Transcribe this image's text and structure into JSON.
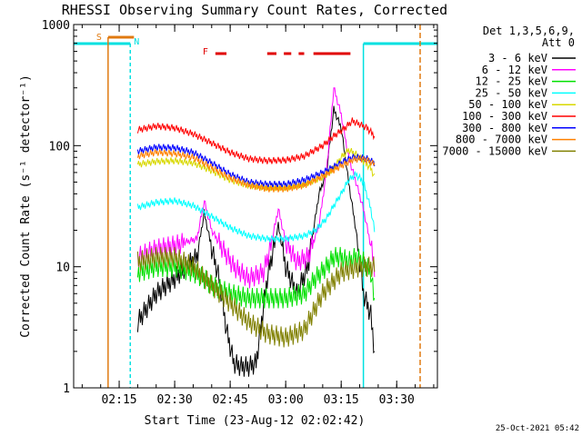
{
  "chart_data": {
    "type": "line",
    "title": "RHESSI Observing Summary Count Rates, Corrected",
    "xlabel": "Start Time (23-Aug-12 02:02:42)",
    "ylabel": "Corrected Count Rate (s⁻¹ detector⁻¹)",
    "yscale": "log",
    "ylim": [
      1,
      1000
    ],
    "y_ticks": [
      "1",
      "10",
      "100",
      "1000"
    ],
    "xlim": [
      "02:02:42",
      "03:41:00"
    ],
    "x_ticks": [
      "02:15",
      "02:30",
      "02:45",
      "03:00",
      "03:15",
      "03:30"
    ],
    "legend_title": [
      "Det 1,3,5,6,9,",
      "Att 0"
    ],
    "legend_position": "right",
    "footer": "25-Oct-2021 05:42",
    "flags": {
      "S": {
        "label": "S",
        "color": "#e07a10",
        "start": "02:12:00",
        "end": "02:19:00"
      },
      "N": {
        "label": "N",
        "color": "#00e0e0",
        "periods": [
          [
            "02:02:42",
            "02:18:00"
          ],
          [
            "03:21:00",
            "03:41:00"
          ]
        ]
      },
      "F": {
        "label": "F",
        "color": "#e00000",
        "segments": [
          [
            "02:41:00",
            "02:44:00"
          ],
          [
            "02:55:00",
            "02:57:30"
          ],
          [
            "02:59:30",
            "03:01:30"
          ],
          [
            "03:03:30",
            "03:05:00"
          ],
          [
            "03:07:30",
            "03:17:30"
          ]
        ]
      }
    },
    "series": [
      {
        "name": "3 - 6 keV",
        "color": "#000000",
        "x": [
          "02:20",
          "02:25",
          "02:30",
          "02:33",
          "02:36",
          "02:38",
          "02:40",
          "02:42",
          "02:44",
          "02:46",
          "02:48",
          "02:50",
          "02:52",
          "02:55",
          "02:58",
          "03:00",
          "03:03",
          "03:06",
          "03:09",
          "03:11",
          "03:13",
          "03:15",
          "03:17",
          "03:19",
          "03:21",
          "03:23",
          "03:24"
        ],
        "y": [
          3.5,
          6,
          8,
          10,
          12,
          28,
          14,
          8,
          3,
          1.6,
          1.5,
          1.5,
          1.6,
          8,
          22,
          10,
          6,
          10,
          40,
          60,
          200,
          140,
          50,
          20,
          6,
          4,
          2
        ]
      },
      {
        "name": "6 - 12 keV",
        "color": "#ff00ff",
        "x": [
          "02:20",
          "02:25",
          "02:30",
          "02:33",
          "02:36",
          "02:38",
          "02:40",
          "02:43",
          "02:46",
          "02:50",
          "02:54",
          "02:56",
          "02:58",
          "03:00",
          "03:03",
          "03:06",
          "03:09",
          "03:11",
          "03:13",
          "03:15",
          "03:17",
          "03:19",
          "03:21",
          "03:23",
          "03:24"
        ],
        "y": [
          12,
          14,
          15,
          16,
          17,
          35,
          20,
          14,
          10,
          8,
          9,
          15,
          30,
          16,
          11,
          12,
          22,
          60,
          300,
          180,
          80,
          50,
          30,
          15,
          10
        ]
      },
      {
        "name": "12 - 25 keV",
        "color": "#00e000",
        "x": [
          "02:20",
          "02:25",
          "02:30",
          "02:35",
          "02:38",
          "02:40",
          "02:45",
          "02:50",
          "02:55",
          "03:00",
          "03:05",
          "03:08",
          "03:11",
          "03:13",
          "03:15",
          "03:17",
          "03:19",
          "03:21",
          "03:23",
          "03:24"
        ],
        "y": [
          9,
          10,
          10,
          9,
          8,
          7,
          6,
          5.5,
          5.5,
          5.5,
          6,
          8,
          10,
          12,
          12,
          11,
          12,
          11,
          9,
          5
        ]
      },
      {
        "name": "25 - 50 keV",
        "color": "#00ffff",
        "x": [
          "02:20",
          "02:25",
          "02:30",
          "02:35",
          "02:40",
          "02:45",
          "02:50",
          "02:55",
          "03:00",
          "03:05",
          "03:08",
          "03:11",
          "03:13",
          "03:15",
          "03:17",
          "03:19",
          "03:21",
          "03:23",
          "03:24"
        ],
        "y": [
          31,
          34,
          35,
          32,
          26,
          21,
          18,
          17,
          17,
          18,
          20,
          25,
          32,
          40,
          52,
          58,
          50,
          30,
          20
        ]
      },
      {
        "name": "50 - 100 keV",
        "color": "#d8d800",
        "x": [
          "02:20",
          "02:25",
          "02:30",
          "02:35",
          "02:40",
          "02:45",
          "02:50",
          "02:55",
          "03:00",
          "03:05",
          "03:10",
          "03:13",
          "03:15",
          "03:17",
          "03:19",
          "03:21",
          "03:23",
          "03:24"
        ],
        "y": [
          70,
          74,
          75,
          72,
          62,
          52,
          47,
          45,
          45,
          48,
          55,
          65,
          80,
          92,
          85,
          75,
          65,
          55
        ]
      },
      {
        "name": "100 - 300 keV",
        "color": "#ff0000",
        "x": [
          "02:20",
          "02:25",
          "02:30",
          "02:35",
          "02:40",
          "02:45",
          "02:50",
          "02:55",
          "03:00",
          "03:05",
          "03:10",
          "03:13",
          "03:16",
          "03:18",
          "03:20",
          "03:22",
          "03:24"
        ],
        "y": [
          135,
          145,
          140,
          125,
          105,
          88,
          78,
          75,
          76,
          82,
          100,
          120,
          140,
          160,
          150,
          140,
          120
        ]
      },
      {
        "name": "300 - 800 keV",
        "color": "#0000ff",
        "x": [
          "02:20",
          "02:25",
          "02:30",
          "02:35",
          "02:40",
          "02:45",
          "02:50",
          "02:55",
          "03:00",
          "03:05",
          "03:10",
          "03:15",
          "03:18",
          "03:20",
          "03:22",
          "03:24"
        ],
        "y": [
          90,
          97,
          96,
          88,
          72,
          58,
          50,
          48,
          48,
          52,
          60,
          72,
          80,
          80,
          78,
          72
        ]
      },
      {
        "name": "800 - 7000 keV",
        "color": "#ff8000",
        "x": [
          "02:20",
          "02:25",
          "02:30",
          "02:35",
          "02:40",
          "02:45",
          "02:50",
          "02:55",
          "03:00",
          "03:05",
          "03:10",
          "03:15",
          "03:18",
          "03:20",
          "03:22",
          "03:24"
        ],
        "y": [
          82,
          88,
          86,
          80,
          66,
          54,
          47,
          44,
          44,
          47,
          56,
          68,
          76,
          78,
          76,
          70
        ]
      },
      {
        "name": "7000 - 15000 keV",
        "color": "#808000",
        "x": [
          "02:20",
          "02:25",
          "02:30",
          "02:35",
          "02:40",
          "02:45",
          "02:50",
          "02:55",
          "03:00",
          "03:05",
          "03:10",
          "03:15",
          "03:20",
          "03:24"
        ],
        "y": [
          11,
          12,
          12,
          10,
          7,
          5,
          3.5,
          2.8,
          2.6,
          3,
          6,
          9,
          10,
          10
        ]
      }
    ]
  }
}
